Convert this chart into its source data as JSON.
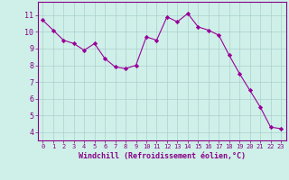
{
  "x": [
    0,
    1,
    2,
    3,
    4,
    5,
    6,
    7,
    8,
    9,
    10,
    11,
    12,
    13,
    14,
    15,
    16,
    17,
    18,
    19,
    20,
    21,
    22,
    23
  ],
  "y": [
    10.7,
    10.1,
    9.5,
    9.3,
    8.9,
    9.3,
    8.4,
    7.9,
    7.8,
    8.0,
    9.7,
    9.5,
    10.9,
    10.6,
    11.1,
    10.3,
    10.1,
    9.8,
    8.6,
    7.5,
    6.5,
    5.5,
    4.3,
    4.2
  ],
  "line_color": "#990099",
  "marker": "D",
  "marker_size": 2.2,
  "bg_color": "#cff0e8",
  "grid_color": "#aacfcf",
  "xlabel": "Windchill (Refroidissement éolien,°C)",
  "ylim": [
    3.5,
    11.8
  ],
  "yticks": [
    4,
    5,
    6,
    7,
    8,
    9,
    10,
    11
  ],
  "xticks": [
    0,
    1,
    2,
    3,
    4,
    5,
    6,
    7,
    8,
    9,
    10,
    11,
    12,
    13,
    14,
    15,
    16,
    17,
    18,
    19,
    20,
    21,
    22,
    23
  ],
  "tick_color": "#880088",
  "tick_fontsize": 5.0,
  "xlabel_fontsize": 6.0
}
